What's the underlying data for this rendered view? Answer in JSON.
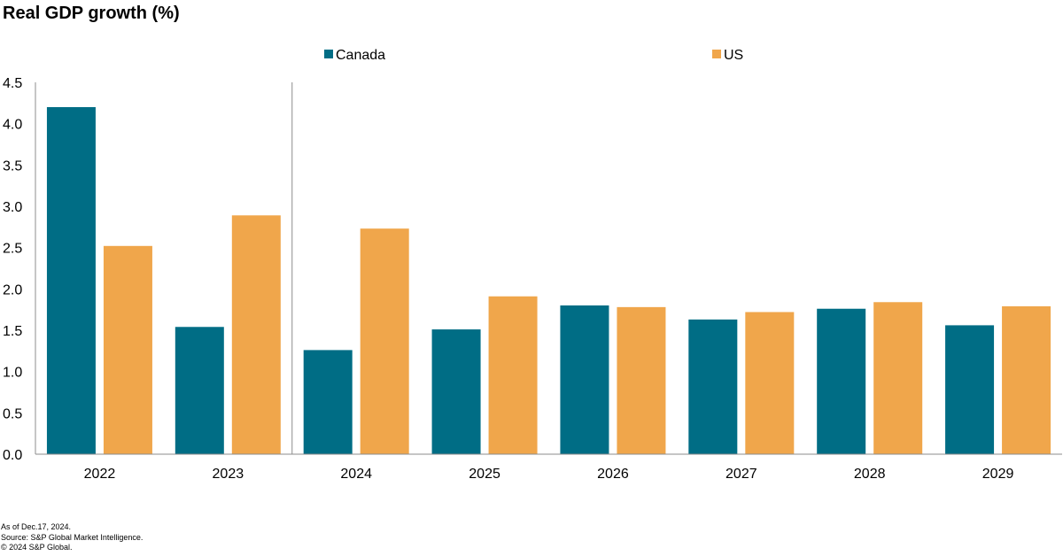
{
  "chart_data": {
    "type": "bar",
    "title": "Real GDP growth (%)",
    "categories": [
      "2022",
      "2023",
      "2024",
      "2025",
      "2026",
      "2027",
      "2028",
      "2029"
    ],
    "series": [
      {
        "name": "Canada",
        "color": "#006d85",
        "values": [
          4.2,
          1.54,
          1.26,
          1.51,
          1.8,
          1.63,
          1.76,
          1.56
        ]
      },
      {
        "name": "US",
        "color": "#f0a64b",
        "values": [
          2.52,
          2.89,
          2.73,
          1.91,
          1.78,
          1.72,
          1.84,
          1.79
        ]
      }
    ],
    "yticks": [
      "0.0",
      "0.5",
      "1.0",
      "1.5",
      "2.0",
      "2.5",
      "3.0",
      "3.5",
      "4.0",
      "4.5"
    ],
    "ylim": [
      0,
      4.5
    ],
    "xlabel": "",
    "ylabel": "",
    "legend_position": "top",
    "grid": false,
    "divider_after_category": "2023"
  },
  "footer": {
    "line1": "As of Dec.17, 2024.",
    "line2": "Source: S&P Global Market Intelligence.",
    "line3": "© 2024 S&P Global."
  }
}
